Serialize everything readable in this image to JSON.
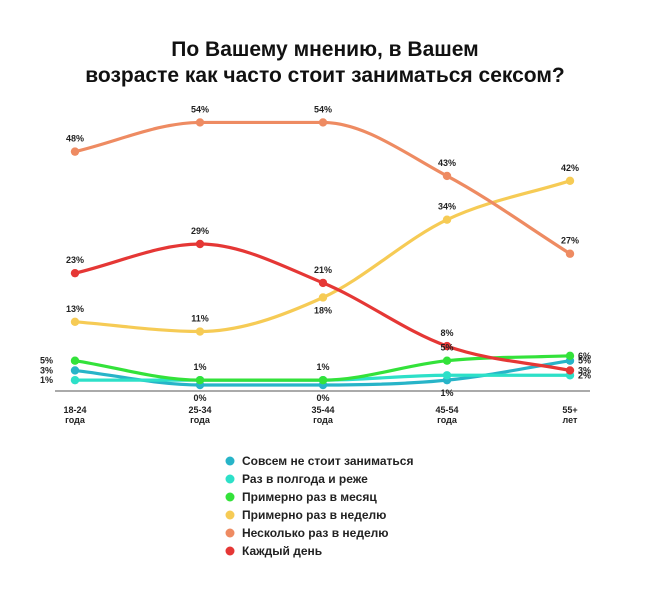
{
  "chart_data": {
    "type": "line",
    "title": "По Вашему мнению, в Вашем\nвозрасте как часто стоит заниматься сексом?",
    "title_lines": [
      "По Вашему мнению, в Вашем",
      "возрасте как часто стоит заниматься сексом?"
    ],
    "categories": [
      [
        "18-24",
        "года"
      ],
      [
        "25-34",
        "года"
      ],
      [
        "35-44",
        "года"
      ],
      [
        "45-54",
        "года"
      ],
      [
        "55+",
        "лет"
      ]
    ],
    "ylim": [
      0,
      58
    ],
    "grid": false,
    "legend_position": "bottom-center",
    "series": [
      {
        "name": "Совсем не стоит заниматься",
        "color": "#27b4c8",
        "values": [
          3,
          0,
          0,
          1,
          5
        ],
        "labels": [
          "3%",
          "0%",
          "0%",
          "1%",
          "5%"
        ],
        "label_pos": [
          "left",
          "below",
          "below",
          "below",
          "right"
        ]
      },
      {
        "name": "Раз в полгода и реже",
        "color": "#2de0c8",
        "values": [
          1,
          1,
          1,
          2,
          2
        ],
        "labels": [
          "1%",
          "",
          "",
          "",
          "2%"
        ],
        "label_pos": [
          "left",
          "",
          "",
          "",
          "right"
        ]
      },
      {
        "name": "Примерно раз в месяц",
        "color": "#33e23a",
        "values": [
          5,
          1,
          1,
          5,
          6
        ],
        "labels": [
          "5%",
          "1%",
          "1%",
          "5%",
          "6%"
        ],
        "label_pos": [
          "left",
          "above",
          "above",
          "above",
          "right"
        ]
      },
      {
        "name": "Примерно раз в неделю",
        "color": "#f6cb55",
        "values": [
          13,
          11,
          18,
          34,
          42
        ],
        "labels": [
          "13%",
          "11%",
          "18%",
          "34%",
          "42%"
        ],
        "label_pos": [
          "above",
          "above",
          "below",
          "above",
          "above"
        ]
      },
      {
        "name": "Несколько раз в неделю",
        "color": "#ee8b62",
        "values": [
          48,
          54,
          54,
          43,
          27
        ],
        "labels": [
          "48%",
          "54%",
          "54%",
          "43%",
          "27%"
        ],
        "label_pos": [
          "above",
          "above",
          "above",
          "above",
          "above"
        ]
      },
      {
        "name": "Каждый день",
        "color": "#e53735",
        "values": [
          23,
          29,
          21,
          8,
          3
        ],
        "labels": [
          "23%",
          "29%",
          "21%",
          "8%",
          "3%"
        ],
        "label_pos": [
          "above",
          "above",
          "above",
          "above",
          "right"
        ]
      }
    ]
  }
}
